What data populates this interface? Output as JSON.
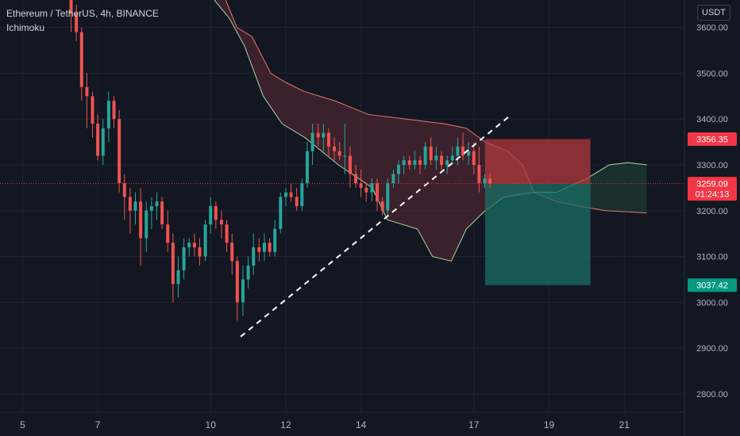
{
  "header": {
    "symbol_line": "Ethereum / TetherUS, 4h, BINANCE",
    "indicator": "Ichimoku"
  },
  "currency_button": "USDT",
  "colors": {
    "background": "#131722",
    "grid": "#1f2330",
    "up": "#26a69a",
    "down": "#ef5350",
    "cloud_bear": "#4a2630",
    "cloud_bull": "#1c3a34",
    "span_a": "#e57373",
    "span_b": "#a5d6a7",
    "axis_text": "#b2b5be",
    "stop_zone": "#b23a3f",
    "target_zone": "#1b6f63",
    "price_label_red": "#f23645",
    "price_label_green": "#089981"
  },
  "chart_data": {
    "type": "candlestick",
    "y_axis": {
      "ticks": [
        2800,
        2900,
        3000,
        3100,
        3200,
        3300,
        3400,
        3500,
        3600
      ],
      "tick_labels": [
        "2800.00",
        "2900.00",
        "3000.00",
        "3100.00",
        "3200.00",
        "3300.00",
        "3400.00",
        "3500.00",
        "3600.00"
      ],
      "range": [
        2760,
        3660
      ]
    },
    "x_axis": {
      "ticks": [
        5,
        7,
        10,
        12,
        14,
        17,
        19,
        21
      ],
      "tick_labels": [
        "5",
        "7",
        "10",
        "12",
        "14",
        "17",
        "19",
        "21"
      ],
      "range": [
        4.4,
        22.6
      ]
    },
    "price_labels": [
      {
        "value": 3356.35,
        "text": "3356.35",
        "style": "red"
      },
      {
        "value": 3259.09,
        "text": "3259.09",
        "sub": "01:24:13",
        "style": "red"
      },
      {
        "value": 3037.42,
        "text": "3037.42",
        "style": "green"
      }
    ],
    "current_price": 3259.09,
    "candles": [
      {
        "t": 6.29,
        "o": 3700,
        "h": 3720,
        "l": 3590,
        "c": 3630
      },
      {
        "t": 6.43,
        "o": 3630,
        "h": 3650,
        "l": 3570,
        "c": 3590
      },
      {
        "t": 6.57,
        "o": 3590,
        "h": 3600,
        "l": 3440,
        "c": 3470
      },
      {
        "t": 6.71,
        "o": 3470,
        "h": 3500,
        "l": 3380,
        "c": 3450
      },
      {
        "t": 6.86,
        "o": 3450,
        "h": 3460,
        "l": 3360,
        "c": 3390
      },
      {
        "t": 7.0,
        "o": 3390,
        "h": 3410,
        "l": 3310,
        "c": 3320
      },
      {
        "t": 7.14,
        "o": 3320,
        "h": 3400,
        "l": 3300,
        "c": 3380
      },
      {
        "t": 7.29,
        "o": 3380,
        "h": 3460,
        "l": 3350,
        "c": 3440
      },
      {
        "t": 7.43,
        "o": 3440,
        "h": 3450,
        "l": 3380,
        "c": 3400
      },
      {
        "t": 7.57,
        "o": 3400,
        "h": 3420,
        "l": 3240,
        "c": 3260
      },
      {
        "t": 7.71,
        "o": 3260,
        "h": 3280,
        "l": 3180,
        "c": 3230
      },
      {
        "t": 7.86,
        "o": 3230,
        "h": 3250,
        "l": 3150,
        "c": 3200
      },
      {
        "t": 8.0,
        "o": 3200,
        "h": 3240,
        "l": 3170,
        "c": 3220
      },
      {
        "t": 8.14,
        "o": 3220,
        "h": 3250,
        "l": 3080,
        "c": 3140
      },
      {
        "t": 8.29,
        "o": 3140,
        "h": 3220,
        "l": 3110,
        "c": 3200
      },
      {
        "t": 8.43,
        "o": 3200,
        "h": 3230,
        "l": 3160,
        "c": 3210
      },
      {
        "t": 8.57,
        "o": 3210,
        "h": 3240,
        "l": 3180,
        "c": 3220
      },
      {
        "t": 8.71,
        "o": 3220,
        "h": 3230,
        "l": 3160,
        "c": 3170
      },
      {
        "t": 8.86,
        "o": 3170,
        "h": 3200,
        "l": 3110,
        "c": 3130
      },
      {
        "t": 9.0,
        "o": 3130,
        "h": 3150,
        "l": 3000,
        "c": 3040
      },
      {
        "t": 9.14,
        "o": 3040,
        "h": 3100,
        "l": 3010,
        "c": 3070
      },
      {
        "t": 9.29,
        "o": 3070,
        "h": 3140,
        "l": 3050,
        "c": 3120
      },
      {
        "t": 9.43,
        "o": 3120,
        "h": 3140,
        "l": 3100,
        "c": 3130
      },
      {
        "t": 9.57,
        "o": 3130,
        "h": 3150,
        "l": 3100,
        "c": 3120
      },
      {
        "t": 9.71,
        "o": 3120,
        "h": 3140,
        "l": 3080,
        "c": 3100
      },
      {
        "t": 9.86,
        "o": 3100,
        "h": 3180,
        "l": 3090,
        "c": 3170
      },
      {
        "t": 10.0,
        "o": 3170,
        "h": 3230,
        "l": 3150,
        "c": 3210
      },
      {
        "t": 10.14,
        "o": 3210,
        "h": 3220,
        "l": 3160,
        "c": 3180
      },
      {
        "t": 10.29,
        "o": 3180,
        "h": 3200,
        "l": 3140,
        "c": 3170
      },
      {
        "t": 10.43,
        "o": 3170,
        "h": 3180,
        "l": 3110,
        "c": 3130
      },
      {
        "t": 10.57,
        "o": 3130,
        "h": 3150,
        "l": 3060,
        "c": 3090
      },
      {
        "t": 10.71,
        "o": 3090,
        "h": 3100,
        "l": 2960,
        "c": 3000
      },
      {
        "t": 10.86,
        "o": 3000,
        "h": 3080,
        "l": 2970,
        "c": 3050
      },
      {
        "t": 11.0,
        "o": 3050,
        "h": 3100,
        "l": 3030,
        "c": 3080
      },
      {
        "t": 11.14,
        "o": 3080,
        "h": 3150,
        "l": 3060,
        "c": 3120
      },
      {
        "t": 11.29,
        "o": 3120,
        "h": 3140,
        "l": 3090,
        "c": 3110
      },
      {
        "t": 11.43,
        "o": 3110,
        "h": 3150,
        "l": 3090,
        "c": 3130
      },
      {
        "t": 11.57,
        "o": 3130,
        "h": 3140,
        "l": 3100,
        "c": 3110
      },
      {
        "t": 11.71,
        "o": 3110,
        "h": 3180,
        "l": 3100,
        "c": 3160
      },
      {
        "t": 11.86,
        "o": 3160,
        "h": 3240,
        "l": 3150,
        "c": 3230
      },
      {
        "t": 12.0,
        "o": 3230,
        "h": 3250,
        "l": 3210,
        "c": 3240
      },
      {
        "t": 12.14,
        "o": 3240,
        "h": 3260,
        "l": 3220,
        "c": 3230
      },
      {
        "t": 12.29,
        "o": 3230,
        "h": 3250,
        "l": 3200,
        "c": 3210
      },
      {
        "t": 12.43,
        "o": 3210,
        "h": 3270,
        "l": 3200,
        "c": 3260
      },
      {
        "t": 12.57,
        "o": 3260,
        "h": 3350,
        "l": 3250,
        "c": 3330
      },
      {
        "t": 12.71,
        "o": 3330,
        "h": 3390,
        "l": 3300,
        "c": 3370
      },
      {
        "t": 12.86,
        "o": 3370,
        "h": 3390,
        "l": 3340,
        "c": 3360
      },
      {
        "t": 13.0,
        "o": 3360,
        "h": 3390,
        "l": 3330,
        "c": 3370
      },
      {
        "t": 13.14,
        "o": 3370,
        "h": 3380,
        "l": 3320,
        "c": 3340
      },
      {
        "t": 13.29,
        "o": 3340,
        "h": 3360,
        "l": 3310,
        "c": 3330
      },
      {
        "t": 13.43,
        "o": 3330,
        "h": 3350,
        "l": 3310,
        "c": 3320
      },
      {
        "t": 13.57,
        "o": 3320,
        "h": 3390,
        "l": 3280,
        "c": 3320
      },
      {
        "t": 13.71,
        "o": 3320,
        "h": 3340,
        "l": 3250,
        "c": 3280
      },
      {
        "t": 13.86,
        "o": 3280,
        "h": 3300,
        "l": 3250,
        "c": 3260
      },
      {
        "t": 14.0,
        "o": 3260,
        "h": 3290,
        "l": 3230,
        "c": 3250
      },
      {
        "t": 14.14,
        "o": 3250,
        "h": 3260,
        "l": 3220,
        "c": 3240
      },
      {
        "t": 14.29,
        "o": 3240,
        "h": 3270,
        "l": 3220,
        "c": 3260
      },
      {
        "t": 14.43,
        "o": 3260,
        "h": 3270,
        "l": 3200,
        "c": 3220
      },
      {
        "t": 14.57,
        "o": 3220,
        "h": 3230,
        "l": 3190,
        "c": 3200
      },
      {
        "t": 14.71,
        "o": 3200,
        "h": 3270,
        "l": 3190,
        "c": 3260
      },
      {
        "t": 14.86,
        "o": 3260,
        "h": 3290,
        "l": 3250,
        "c": 3280
      },
      {
        "t": 15.0,
        "o": 3280,
        "h": 3310,
        "l": 3260,
        "c": 3300
      },
      {
        "t": 15.14,
        "o": 3300,
        "h": 3320,
        "l": 3280,
        "c": 3310
      },
      {
        "t": 15.29,
        "o": 3310,
        "h": 3320,
        "l": 3290,
        "c": 3300
      },
      {
        "t": 15.43,
        "o": 3300,
        "h": 3330,
        "l": 3290,
        "c": 3310
      },
      {
        "t": 15.57,
        "o": 3310,
        "h": 3320,
        "l": 3280,
        "c": 3300
      },
      {
        "t": 15.71,
        "o": 3300,
        "h": 3350,
        "l": 3290,
        "c": 3340
      },
      {
        "t": 15.86,
        "o": 3340,
        "h": 3360,
        "l": 3300,
        "c": 3310
      },
      {
        "t": 16.0,
        "o": 3310,
        "h": 3340,
        "l": 3290,
        "c": 3320
      },
      {
        "t": 16.14,
        "o": 3320,
        "h": 3330,
        "l": 3290,
        "c": 3300
      },
      {
        "t": 16.29,
        "o": 3300,
        "h": 3320,
        "l": 3280,
        "c": 3310
      },
      {
        "t": 16.43,
        "o": 3310,
        "h": 3340,
        "l": 3300,
        "c": 3320
      },
      {
        "t": 16.57,
        "o": 3320,
        "h": 3360,
        "l": 3300,
        "c": 3340
      },
      {
        "t": 16.71,
        "o": 3340,
        "h": 3370,
        "l": 3310,
        "c": 3320
      },
      {
        "t": 16.86,
        "o": 3320,
        "h": 3350,
        "l": 3300,
        "c": 3330
      },
      {
        "t": 17.0,
        "o": 3330,
        "h": 3350,
        "l": 3280,
        "c": 3300
      },
      {
        "t": 17.14,
        "o": 3300,
        "h": 3340,
        "l": 3240,
        "c": 3260
      },
      {
        "t": 17.29,
        "o": 3260,
        "h": 3280,
        "l": 3250,
        "c": 3270
      },
      {
        "t": 17.43,
        "o": 3270,
        "h": 3280,
        "l": 3250,
        "c": 3259.09
      }
    ],
    "ichimoku": {
      "span_a": [
        {
          "t": 10.1,
          "v": 3700
        },
        {
          "t": 10.4,
          "v": 3660
        },
        {
          "t": 10.7,
          "v": 3600
        },
        {
          "t": 11.1,
          "v": 3580
        },
        {
          "t": 11.6,
          "v": 3500
        },
        {
          "t": 12.0,
          "v": 3480
        },
        {
          "t": 12.5,
          "v": 3460
        },
        {
          "t": 13.3,
          "v": 3440
        },
        {
          "t": 14.2,
          "v": 3410
        },
        {
          "t": 15.2,
          "v": 3400
        },
        {
          "t": 16.2,
          "v": 3390
        },
        {
          "t": 16.8,
          "v": 3380
        },
        {
          "t": 17.3,
          "v": 3350
        },
        {
          "t": 17.9,
          "v": 3330
        },
        {
          "t": 18.3,
          "v": 3300
        },
        {
          "t": 18.6,
          "v": 3240
        },
        {
          "t": 19.2,
          "v": 3220
        },
        {
          "t": 19.8,
          "v": 3210
        },
        {
          "t": 20.5,
          "v": 3200
        },
        {
          "t": 21.6,
          "v": 3195
        }
      ],
      "span_b": [
        {
          "t": 10.1,
          "v": 3660
        },
        {
          "t": 10.5,
          "v": 3620
        },
        {
          "t": 10.9,
          "v": 3560
        },
        {
          "t": 11.4,
          "v": 3450
        },
        {
          "t": 11.9,
          "v": 3390
        },
        {
          "t": 12.5,
          "v": 3360
        },
        {
          "t": 13.4,
          "v": 3300
        },
        {
          "t": 14.3,
          "v": 3250
        },
        {
          "t": 14.7,
          "v": 3180
        },
        {
          "t": 15.5,
          "v": 3160
        },
        {
          "t": 15.9,
          "v": 3100
        },
        {
          "t": 16.4,
          "v": 3090
        },
        {
          "t": 16.8,
          "v": 3160
        },
        {
          "t": 17.3,
          "v": 3200
        },
        {
          "t": 17.8,
          "v": 3230
        },
        {
          "t": 18.6,
          "v": 3240
        },
        {
          "t": 19.2,
          "v": 3240
        },
        {
          "t": 20.0,
          "v": 3270
        },
        {
          "t": 20.6,
          "v": 3300
        },
        {
          "t": 21.1,
          "v": 3305
        },
        {
          "t": 21.6,
          "v": 3300
        }
      ]
    },
    "trendline": {
      "t1": 10.8,
      "v1": 2925,
      "t2": 18.0,
      "v2": 3410,
      "style": "dashed"
    },
    "position": {
      "t_start": 17.3,
      "t_end": 20.1,
      "entry": 3259.09,
      "stop": 3356.35,
      "target": 3037.42
    }
  }
}
